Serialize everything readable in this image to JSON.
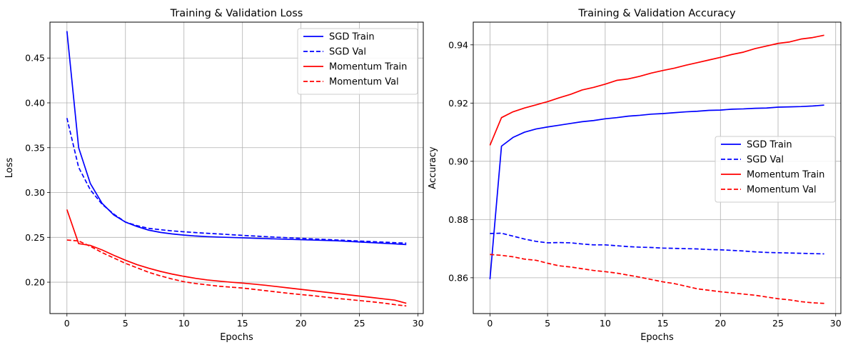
{
  "chart_data": [
    {
      "type": "line",
      "title": "Training & Validation Loss",
      "xlabel": "Epochs",
      "ylabel": "Loss",
      "xlim": [
        -1.45,
        30.45
      ],
      "ylim": [
        0.165,
        0.49
      ],
      "xticks": [
        0,
        5,
        10,
        15,
        20,
        25,
        30
      ],
      "xtick_labels": [
        "0",
        "5",
        "10",
        "15",
        "20",
        "25",
        "30"
      ],
      "yticks": [
        0.2,
        0.25,
        0.3,
        0.35,
        0.4,
        0.45
      ],
      "ytick_labels": [
        "0.20",
        "0.25",
        "0.30",
        "0.35",
        "0.40",
        "0.45"
      ],
      "grid": true,
      "legend_position": "top-right",
      "x": [
        0,
        1,
        2,
        3,
        4,
        5,
        6,
        7,
        8,
        9,
        10,
        11,
        12,
        13,
        14,
        15,
        16,
        17,
        18,
        19,
        20,
        21,
        22,
        23,
        24,
        25,
        26,
        27,
        28,
        29
      ],
      "series": [
        {
          "name": "SGD Train",
          "color": "#0000ff",
          "dash": "solid",
          "values": [
            0.48,
            0.35,
            0.31,
            0.288,
            0.275,
            0.267,
            0.262,
            0.258,
            0.2555,
            0.2538,
            0.2525,
            0.2515,
            0.2508,
            0.2503,
            0.2499,
            0.2495,
            0.249,
            0.2486,
            0.2482,
            0.2478,
            0.2474,
            0.247,
            0.2466,
            0.2462,
            0.2455,
            0.2448,
            0.2441,
            0.2434,
            0.2427,
            0.242
          ]
        },
        {
          "name": "SGD Val",
          "color": "#0000ff",
          "dash": "dashed",
          "values": [
            0.383,
            0.328,
            0.303,
            0.287,
            0.276,
            0.267,
            0.263,
            0.26,
            0.2585,
            0.2572,
            0.2562,
            0.2553,
            0.2545,
            0.2538,
            0.253,
            0.2522,
            0.2515,
            0.2508,
            0.2501,
            0.2495,
            0.2489,
            0.2483,
            0.2477,
            0.2471,
            0.2465,
            0.2459,
            0.2453,
            0.2447,
            0.2441,
            0.2435
          ]
        },
        {
          "name": "Momentum Train",
          "color": "#ff0000",
          "dash": "solid",
          "values": [
            0.281,
            0.243,
            0.241,
            0.236,
            0.23,
            0.2245,
            0.2195,
            0.2155,
            0.212,
            0.209,
            0.2065,
            0.2043,
            0.2025,
            0.2012,
            0.2,
            0.199,
            0.1978,
            0.1965,
            0.195,
            0.1935,
            0.192,
            0.1905,
            0.189,
            0.1875,
            0.186,
            0.1845,
            0.183,
            0.1815,
            0.18,
            0.1765
          ]
        },
        {
          "name": "Momentum Val",
          "color": "#ff0000",
          "dash": "dashed",
          "values": [
            0.247,
            0.246,
            0.24,
            0.233,
            0.227,
            0.221,
            0.216,
            0.211,
            0.207,
            0.2035,
            0.2005,
            0.1985,
            0.197,
            0.1955,
            0.1945,
            0.1935,
            0.192,
            0.1905,
            0.189,
            0.1875,
            0.1862,
            0.185,
            0.1835,
            0.182,
            0.1808,
            0.1795,
            0.1782,
            0.1768,
            0.175,
            0.1735
          ]
        }
      ]
    },
    {
      "type": "line",
      "title": "Training & Validation Accuracy",
      "xlabel": "Epochs",
      "ylabel": "Accuracy",
      "xlim": [
        -1.45,
        30.45
      ],
      "ylim": [
        0.8477,
        0.9478
      ],
      "xticks": [
        0,
        5,
        10,
        15,
        20,
        25,
        30
      ],
      "xtick_labels": [
        "0",
        "5",
        "10",
        "15",
        "20",
        "25",
        "30"
      ],
      "yticks": [
        0.86,
        0.88,
        0.9,
        0.92,
        0.94
      ],
      "ytick_labels": [
        "0.86",
        "0.88",
        "0.90",
        "0.92",
        "0.94"
      ],
      "grid": true,
      "legend_position": "center-right",
      "x": [
        0,
        1,
        2,
        3,
        4,
        5,
        6,
        7,
        8,
        9,
        10,
        11,
        12,
        13,
        14,
        15,
        16,
        17,
        18,
        19,
        20,
        21,
        22,
        23,
        24,
        25,
        26,
        27,
        28,
        29
      ],
      "series": [
        {
          "name": "SGD Train",
          "color": "#0000ff",
          "dash": "solid",
          "values": [
            0.8595,
            0.9052,
            0.9082,
            0.91,
            0.9111,
            0.9118,
            0.9124,
            0.913,
            0.9136,
            0.914,
            0.9146,
            0.915,
            0.9155,
            0.9158,
            0.9162,
            0.9164,
            0.9167,
            0.917,
            0.9172,
            0.9175,
            0.9176,
            0.9179,
            0.918,
            0.9182,
            0.9183,
            0.9186,
            0.9187,
            0.9188,
            0.919,
            0.9193
          ]
        },
        {
          "name": "SGD Val",
          "color": "#0000ff",
          "dash": "dashed",
          "values": [
            0.8752,
            0.8753,
            0.8743,
            0.8733,
            0.8725,
            0.872,
            0.8721,
            0.872,
            0.8716,
            0.8713,
            0.8713,
            0.871,
            0.8707,
            0.8705,
            0.8704,
            0.8702,
            0.8701,
            0.87,
            0.8699,
            0.8697,
            0.8696,
            0.8694,
            0.8692,
            0.8689,
            0.8687,
            0.8686,
            0.8685,
            0.8684,
            0.8683,
            0.8682
          ]
        },
        {
          "name": "Momentum Train",
          "color": "#ff0000",
          "dash": "solid",
          "values": [
            0.9055,
            0.915,
            0.917,
            0.9183,
            0.9194,
            0.9205,
            0.9218,
            0.923,
            0.9245,
            0.9254,
            0.9265,
            0.9278,
            0.9283,
            0.9292,
            0.9303,
            0.9312,
            0.932,
            0.933,
            0.9339,
            0.9348,
            0.9357,
            0.9367,
            0.9375,
            0.9387,
            0.9396,
            0.9405,
            0.941,
            0.942,
            0.9425,
            0.9433
          ]
        },
        {
          "name": "Momentum Val",
          "color": "#ff0000",
          "dash": "dashed",
          "values": [
            0.868,
            0.8677,
            0.8672,
            0.8664,
            0.866,
            0.865,
            0.8641,
            0.8637,
            0.8631,
            0.8625,
            0.8621,
            0.8616,
            0.8609,
            0.8602,
            0.8594,
            0.8586,
            0.858,
            0.8571,
            0.8562,
            0.8557,
            0.8552,
            0.8548,
            0.8544,
            0.854,
            0.8534,
            0.8528,
            0.8524,
            0.8518,
            0.8514,
            0.8512
          ]
        }
      ]
    }
  ]
}
